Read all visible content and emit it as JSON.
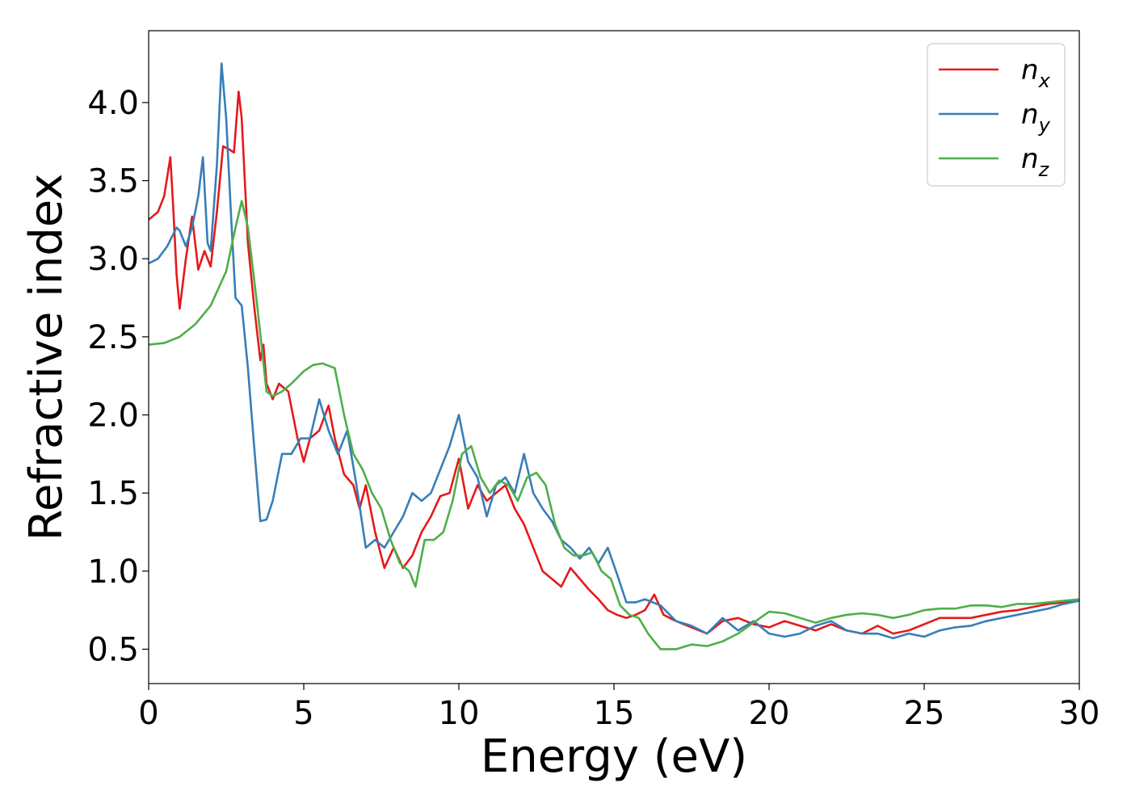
{
  "chart_data": {
    "type": "line",
    "title": "",
    "xlabel": "Energy (eV)",
    "ylabel": "Refractive index",
    "xlim": [
      0,
      30
    ],
    "ylim": [
      0.28,
      4.46
    ],
    "xticks": [
      0,
      5,
      10,
      15,
      20,
      25,
      30
    ],
    "xtick_labels": [
      "0",
      "5",
      "10",
      "15",
      "20",
      "25",
      "30"
    ],
    "yticks": [
      0.5,
      1.0,
      1.5,
      2.0,
      2.5,
      3.0,
      3.5,
      4.0
    ],
    "ytick_labels": [
      "0.5",
      "1.0",
      "1.5",
      "2.0",
      "2.5",
      "3.0",
      "3.5",
      "4.0"
    ],
    "grid": false,
    "legend_position": "top-right",
    "series": [
      {
        "name": "n_x",
        "color": "#e41a1c",
        "x": [
          0,
          0.3,
          0.5,
          0.7,
          0.8,
          0.9,
          1.0,
          1.2,
          1.4,
          1.6,
          1.8,
          2.0,
          2.2,
          2.4,
          2.6,
          2.75,
          2.9,
          3.0,
          3.2,
          3.4,
          3.6,
          3.7,
          3.8,
          4.0,
          4.2,
          4.5,
          4.8,
          5.0,
          5.2,
          5.5,
          5.8,
          6.0,
          6.3,
          6.6,
          6.8,
          7.0,
          7.3,
          7.6,
          7.9,
          8.2,
          8.5,
          8.8,
          9.1,
          9.4,
          9.7,
          10.0,
          10.3,
          10.6,
          10.9,
          11.2,
          11.5,
          11.8,
          12.1,
          12.4,
          12.7,
          13.0,
          13.3,
          13.6,
          13.9,
          14.2,
          14.5,
          14.8,
          15.1,
          15.4,
          15.7,
          16.0,
          16.3,
          16.6,
          17.0,
          17.5,
          18.0,
          18.5,
          19.0,
          19.5,
          20.0,
          20.5,
          21.0,
          21.5,
          22.0,
          22.5,
          23.0,
          23.5,
          24.0,
          24.5,
          25.0,
          25.5,
          26.0,
          26.5,
          27.0,
          27.5,
          28.0,
          28.5,
          29.0,
          29.5,
          30.0
        ],
        "y": [
          3.25,
          3.3,
          3.4,
          3.65,
          3.3,
          2.9,
          2.68,
          3.0,
          3.27,
          2.93,
          3.05,
          2.95,
          3.3,
          3.72,
          3.7,
          3.68,
          4.07,
          3.9,
          3.1,
          2.7,
          2.35,
          2.45,
          2.2,
          2.1,
          2.2,
          2.15,
          1.85,
          1.7,
          1.85,
          1.9,
          2.06,
          1.85,
          1.62,
          1.55,
          1.4,
          1.55,
          1.25,
          1.02,
          1.15,
          1.02,
          1.1,
          1.25,
          1.35,
          1.48,
          1.5,
          1.72,
          1.4,
          1.55,
          1.45,
          1.5,
          1.55,
          1.4,
          1.3,
          1.15,
          1.0,
          0.95,
          0.9,
          1.02,
          0.95,
          0.88,
          0.82,
          0.75,
          0.72,
          0.7,
          0.72,
          0.75,
          0.85,
          0.72,
          0.68,
          0.64,
          0.6,
          0.68,
          0.7,
          0.66,
          0.64,
          0.68,
          0.65,
          0.62,
          0.66,
          0.62,
          0.6,
          0.65,
          0.6,
          0.62,
          0.66,
          0.7,
          0.7,
          0.7,
          0.72,
          0.74,
          0.75,
          0.77,
          0.79,
          0.8,
          0.81
        ]
      },
      {
        "name": "n_y",
        "color": "#377eb8",
        "x": [
          0,
          0.3,
          0.6,
          0.9,
          1.0,
          1.2,
          1.4,
          1.6,
          1.75,
          1.9,
          2.0,
          2.2,
          2.35,
          2.5,
          2.65,
          2.8,
          3.0,
          3.2,
          3.4,
          3.6,
          3.8,
          4.0,
          4.3,
          4.6,
          4.9,
          5.2,
          5.5,
          5.8,
          6.1,
          6.4,
          6.7,
          7.0,
          7.3,
          7.6,
          7.9,
          8.2,
          8.5,
          8.8,
          9.1,
          9.4,
          9.7,
          10.0,
          10.3,
          10.6,
          10.9,
          11.2,
          11.5,
          11.8,
          12.1,
          12.4,
          12.7,
          13.0,
          13.3,
          13.6,
          13.9,
          14.2,
          14.5,
          14.8,
          15.1,
          15.4,
          15.7,
          16.0,
          16.5,
          17.0,
          17.5,
          18.0,
          18.5,
          19.0,
          19.5,
          20.0,
          20.5,
          21.0,
          21.5,
          22.0,
          22.5,
          23.0,
          23.5,
          24.0,
          24.5,
          25.0,
          25.5,
          26.0,
          26.5,
          27.0,
          27.5,
          28.0,
          28.5,
          29.0,
          29.5,
          30.0
        ],
        "y": [
          2.97,
          3.0,
          3.08,
          3.2,
          3.18,
          3.08,
          3.2,
          3.4,
          3.65,
          3.1,
          3.05,
          3.6,
          4.25,
          3.9,
          3.3,
          2.75,
          2.7,
          2.3,
          1.8,
          1.32,
          1.33,
          1.45,
          1.75,
          1.75,
          1.85,
          1.85,
          2.1,
          1.9,
          1.75,
          1.9,
          1.55,
          1.15,
          1.2,
          1.15,
          1.25,
          1.35,
          1.5,
          1.45,
          1.5,
          1.65,
          1.8,
          2.0,
          1.7,
          1.6,
          1.35,
          1.55,
          1.6,
          1.5,
          1.75,
          1.5,
          1.4,
          1.32,
          1.2,
          1.15,
          1.08,
          1.15,
          1.05,
          1.15,
          0.98,
          0.8,
          0.8,
          0.82,
          0.78,
          0.68,
          0.65,
          0.6,
          0.7,
          0.62,
          0.68,
          0.6,
          0.58,
          0.6,
          0.65,
          0.68,
          0.62,
          0.6,
          0.6,
          0.57,
          0.6,
          0.58,
          0.62,
          0.64,
          0.65,
          0.68,
          0.7,
          0.72,
          0.74,
          0.76,
          0.79,
          0.81
        ]
      },
      {
        "name": "n_z",
        "color": "#4daf4a",
        "x": [
          0,
          0.5,
          1.0,
          1.5,
          2.0,
          2.5,
          2.8,
          3.0,
          3.2,
          3.5,
          3.8,
          4.0,
          4.3,
          4.6,
          5.0,
          5.3,
          5.6,
          6.0,
          6.3,
          6.6,
          6.9,
          7.2,
          7.5,
          7.8,
          8.1,
          8.4,
          8.6,
          8.9,
          9.2,
          9.5,
          9.8,
          10.1,
          10.4,
          10.7,
          11.0,
          11.3,
          11.6,
          11.9,
          12.2,
          12.5,
          12.8,
          13.1,
          13.4,
          13.7,
          14.0,
          14.3,
          14.6,
          14.9,
          15.2,
          15.5,
          15.8,
          16.1,
          16.5,
          17.0,
          17.5,
          18.0,
          18.5,
          19.0,
          19.5,
          20.0,
          20.5,
          21.0,
          21.5,
          22.0,
          22.5,
          23.0,
          23.5,
          24.0,
          24.5,
          25.0,
          25.5,
          26.0,
          26.5,
          27.0,
          27.5,
          28.0,
          28.5,
          29.0,
          29.5,
          30.0
        ],
        "y": [
          2.45,
          2.46,
          2.5,
          2.58,
          2.7,
          2.92,
          3.2,
          3.37,
          3.2,
          2.7,
          2.15,
          2.12,
          2.15,
          2.2,
          2.28,
          2.32,
          2.33,
          2.3,
          2.0,
          1.75,
          1.65,
          1.5,
          1.4,
          1.2,
          1.05,
          1.0,
          0.9,
          1.2,
          1.2,
          1.25,
          1.45,
          1.75,
          1.8,
          1.6,
          1.5,
          1.58,
          1.55,
          1.45,
          1.6,
          1.63,
          1.55,
          1.3,
          1.15,
          1.1,
          1.1,
          1.12,
          1.0,
          0.95,
          0.78,
          0.72,
          0.7,
          0.6,
          0.5,
          0.5,
          0.53,
          0.52,
          0.55,
          0.6,
          0.67,
          0.74,
          0.73,
          0.7,
          0.67,
          0.7,
          0.72,
          0.73,
          0.72,
          0.7,
          0.72,
          0.75,
          0.76,
          0.76,
          0.78,
          0.78,
          0.77,
          0.79,
          0.79,
          0.8,
          0.81,
          0.82
        ]
      }
    ]
  },
  "legend": {
    "items": [
      {
        "base": "n",
        "sub": "x",
        "color": "#e41a1c"
      },
      {
        "base": "n",
        "sub": "y",
        "color": "#377eb8"
      },
      {
        "base": "n",
        "sub": "z",
        "color": "#4daf4a"
      }
    ]
  }
}
